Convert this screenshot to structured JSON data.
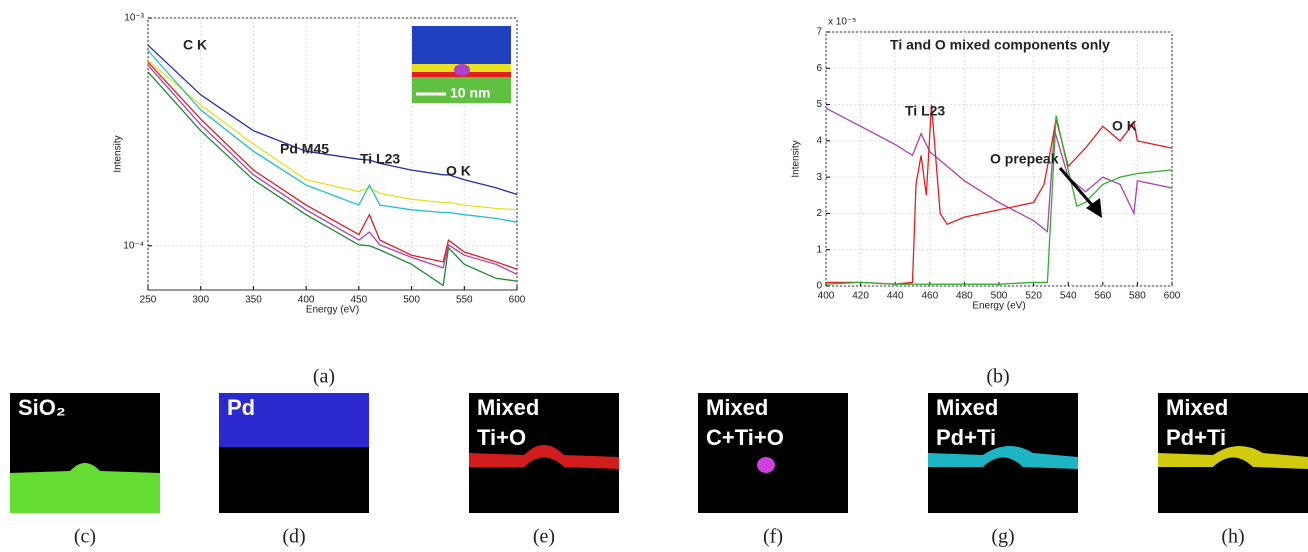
{
  "chart_data": [
    {
      "type": "line",
      "log_y": true,
      "grid": true,
      "x_label": "Energy (eV)",
      "y_label": "Intensity",
      "caption": "(a)",
      "inset_label": "10 nm",
      "xlim": [
        250,
        600
      ],
      "xticks": [
        250,
        300,
        350,
        400,
        450,
        500,
        550,
        600
      ],
      "ylim": [
        6.4e-05,
        0.001
      ],
      "yticks": [
        {
          "value": 0.0001,
          "label": "10⁻⁴"
        },
        {
          "value": 0.001,
          "label": "10⁻³"
        }
      ],
      "annotations": [
        "C K",
        "Pd M45",
        "Ti L23",
        "O K"
      ],
      "x": [
        250,
        300,
        350,
        400,
        450,
        460,
        470,
        500,
        530,
        535,
        550,
        580,
        600
      ],
      "series": [
        {
          "color": "#1f2fa0",
          "values": [
            0.00076,
            0.00046,
            0.00032,
            0.00026,
            0.00024,
            0.000238,
            0.00023,
            0.000215,
            0.000205,
            0.000205,
            0.000195,
            0.00018,
            0.000168
          ]
        },
        {
          "color": "#e8e020",
          "values": [
            0.00065,
            0.000415,
            0.00028,
            0.000195,
            0.000173,
            0.00018,
            0.00017,
            0.00016,
            0.000155,
            0.000155,
            0.000151,
            0.000146,
            0.000144
          ]
        },
        {
          "color": "#20c0d0",
          "values": [
            0.00072,
            0.000395,
            0.00026,
            0.000185,
            0.000151,
            0.000185,
            0.000151,
            0.000144,
            0.00014,
            0.00014,
            0.000137,
            0.000132,
            0.000127
          ]
        },
        {
          "color": "#e02020",
          "values": [
            0.00064,
            0.00036,
            0.000215,
            0.000151,
            0.000112,
            0.000137,
            0.000106,
            9.1e-05,
            8.5e-05,
            0.000106,
            9.4e-05,
            8.5e-05,
            7.9e-05
          ]
        },
        {
          "color": "#b040b0",
          "values": [
            0.00062,
            0.00034,
            0.000205,
            0.000144,
            0.000106,
            0.000115,
            0.000101,
            8.9e-05,
            8e-05,
            0.000101,
            9.1e-05,
            8.3e-05,
            7.5e-05
          ]
        },
        {
          "color": "#1a8a30",
          "values": [
            0.00058,
            0.00032,
            0.000195,
            0.000137,
            0.000101,
            0.0001,
            9.6e-05,
            8.3e-05,
            6.7e-05,
            9.8e-05,
            8.3e-05,
            7.2e-05,
            7e-05
          ]
        }
      ]
    },
    {
      "type": "line",
      "grid": true,
      "x_label": "Energy (eV)",
      "y_label": "Intensity",
      "y_multiplier": "x 10⁻⁵",
      "caption": "(b)",
      "xlim": [
        400,
        600
      ],
      "xticks": [
        400,
        420,
        440,
        460,
        480,
        500,
        520,
        540,
        560,
        580,
        600
      ],
      "ylim": [
        0,
        7
      ],
      "yticks": [
        0,
        1,
        2,
        3,
        4,
        5,
        6,
        7
      ],
      "annotations": [
        "Ti and O mixed components only",
        "Ti L23",
        "O K",
        "O prepeak"
      ],
      "series": [
        {
          "color": "#b040b0",
          "x": [
            400,
            420,
            440,
            450,
            455,
            460,
            470,
            480,
            500,
            520,
            528,
            532,
            540,
            550,
            560,
            570,
            578,
            580,
            600
          ],
          "values": [
            4.9,
            4.4,
            3.9,
            3.6,
            4.2,
            3.7,
            3.3,
            2.9,
            2.3,
            1.8,
            1.5,
            4.3,
            3.0,
            2.6,
            3.0,
            2.8,
            2.0,
            2.9,
            2.7
          ]
        },
        {
          "color": "#e02020",
          "x": [
            400,
            420,
            440,
            450,
            452,
            455,
            458,
            461,
            466,
            470,
            480,
            500,
            520,
            526,
            530,
            533,
            540,
            550,
            560,
            570,
            578,
            580,
            600
          ],
          "values": [
            0.1,
            0.1,
            0.05,
            0.1,
            2.8,
            3.6,
            2.5,
            5.0,
            2.0,
            1.7,
            1.9,
            2.1,
            2.3,
            2.8,
            3.8,
            4.6,
            3.3,
            3.8,
            4.4,
            4.0,
            4.5,
            4.0,
            3.8
          ]
        },
        {
          "color": "#30b030",
          "x": [
            400,
            420,
            440,
            480,
            500,
            520,
            528,
            533,
            540,
            545,
            550,
            560,
            570,
            580,
            600
          ],
          "values": [
            0.05,
            0.1,
            0.05,
            0.05,
            0.05,
            0.1,
            0.1,
            4.7,
            3.2,
            2.2,
            2.3,
            2.8,
            3.0,
            3.1,
            3.2
          ]
        }
      ]
    }
  ],
  "panels": [
    {
      "label": [
        "SiO₂"
      ],
      "caption": "(c)",
      "color": "#66dd33"
    },
    {
      "label": [
        "Pd"
      ],
      "caption": "(d)",
      "color": "#2a2ad0"
    },
    {
      "label": [
        "Mixed",
        "Ti+O"
      ],
      "caption": "(e)",
      "color": "#e82020"
    },
    {
      "label": [
        "Mixed",
        "C+Ti+O"
      ],
      "caption": "(f)",
      "color": "#d040e0"
    },
    {
      "label": [
        "Mixed",
        "Pd+Ti"
      ],
      "caption": "(g)",
      "color": "#20c8d8"
    },
    {
      "label": [
        "Mixed",
        "Pd+Ti"
      ],
      "caption": "(h)",
      "color": "#e8e010"
    }
  ]
}
